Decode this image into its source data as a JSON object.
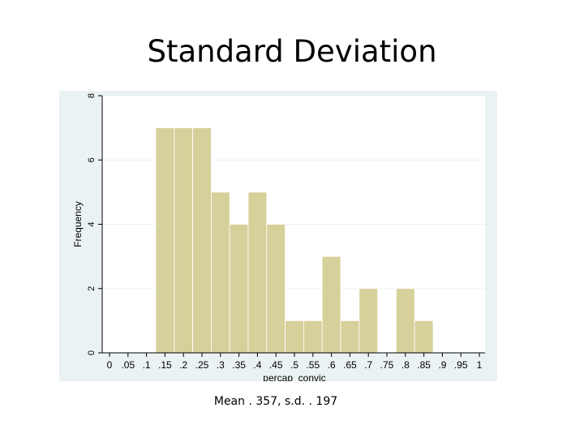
{
  "slide": {
    "title": "Standard Deviation",
    "caption": "Mean . 357, s.d. . 197"
  },
  "chart_data": {
    "type": "bar",
    "histogram": true,
    "xlabel": "percap_convic",
    "ylabel": "Frequency",
    "xlim": [
      0,
      1
    ],
    "ylim": [
      0,
      8
    ],
    "x_ticks": [
      "0",
      ".05",
      ".1",
      ".15",
      ".2",
      ".25",
      ".3",
      ".35",
      ".4",
      ".45",
      ".5",
      ".55",
      ".6",
      ".65",
      ".7",
      ".75",
      ".8",
      ".85",
      ".9",
      ".95",
      "1"
    ],
    "y_ticks": [
      "0",
      "2",
      "4",
      "6",
      "8"
    ],
    "bin_width": 0.05,
    "bins": [
      {
        "start": 0.125,
        "value": 7
      },
      {
        "start": 0.175,
        "value": 7
      },
      {
        "start": 0.225,
        "value": 7
      },
      {
        "start": 0.275,
        "value": 5
      },
      {
        "start": 0.325,
        "value": 4
      },
      {
        "start": 0.375,
        "value": 5
      },
      {
        "start": 0.425,
        "value": 4
      },
      {
        "start": 0.475,
        "value": 1
      },
      {
        "start": 0.525,
        "value": 1
      },
      {
        "start": 0.575,
        "value": 3
      },
      {
        "start": 0.625,
        "value": 1
      },
      {
        "start": 0.675,
        "value": 2
      },
      {
        "start": 0.725,
        "value": 0
      },
      {
        "start": 0.775,
        "value": 2
      },
      {
        "start": 0.825,
        "value": 1
      }
    ],
    "grid": true,
    "colors": {
      "bar_fill": "#d6d09a",
      "bar_stroke": "#ffffff",
      "plot_background": "#ffffff",
      "outer_background": "#eaf2f3",
      "grid": "#eaf2f3"
    }
  }
}
